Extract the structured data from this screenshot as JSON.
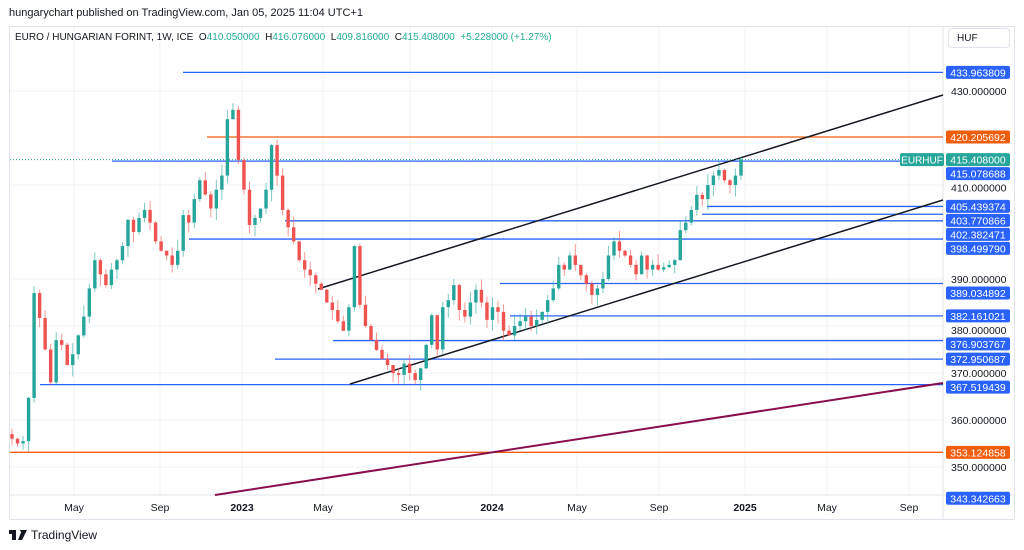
{
  "publish_line": "hungarychart published on TradingView.com, Jan 05, 2025 11:04 UTC+1",
  "legend": {
    "symbol": "EURO / HUNGARIAN FORINT, 1W, ICE",
    "o_label": "O",
    "o": "410.050000",
    "h_label": "H",
    "h": "416.076000",
    "l_label": "L",
    "l": "409.816000",
    "c_label": "C",
    "c": "415.408000",
    "change": "+5.228000 (+1.27%)"
  },
  "currency_button": "HUF",
  "symbol_tag": "EURHUF",
  "brand": "TradingView",
  "colors": {
    "up": "#26a69a",
    "down": "#ef5350",
    "level": "#2962ff",
    "orange": "#f05e0d",
    "trend": "#131722",
    "purple": "#880e4f"
  },
  "chart_data": {
    "type": "candlestick",
    "title": "EURO / HUNGARIAN FORINT, 1W, ICE",
    "ylim": [
      338,
      440
    ],
    "y_ticks": [
      "430.000000",
      "410.000000",
      "390.000000",
      "380.000000",
      "370.000000",
      "360.000000",
      "350.000000"
    ],
    "y_tick_values": [
      430,
      410,
      390,
      380,
      370,
      360,
      350
    ],
    "x_ticks": [
      "May",
      "Sep",
      "2023",
      "May",
      "Sep",
      "2024",
      "May",
      "Sep",
      "2025",
      "May",
      "Sep"
    ],
    "last_price": "415.408000",
    "weekly_closes": [
      356,
      355,
      355.5,
      364.7,
      387,
      381.7,
      375,
      368,
      377,
      376,
      371.7,
      374,
      378,
      382,
      388,
      394,
      391,
      388.7,
      392,
      394,
      397,
      402.6,
      400,
      403,
      404.7,
      402,
      398,
      396,
      395,
      393,
      396,
      403.6,
      402,
      407,
      411,
      408,
      405,
      409,
      412,
      424,
      426,
      415.3,
      409,
      401.5,
      403,
      405,
      409,
      418.5,
      412,
      404.7,
      401,
      398,
      394,
      392,
      390.8,
      389,
      387.7,
      385,
      383.4,
      381,
      379,
      384,
      397,
      384.5,
      380,
      377,
      374.9,
      373,
      371.7,
      370,
      369.6,
      372,
      370,
      368.5,
      371,
      376,
      382.3,
      375,
      384,
      385.5,
      388.7,
      383.4,
      382,
      385,
      387.7,
      385,
      381.3,
      384,
      383,
      379,
      378,
      380,
      381,
      382,
      380,
      381.3,
      383,
      385.5,
      388,
      393,
      392,
      395,
      393,
      390.8,
      389,
      386.6,
      388,
      390,
      395,
      398,
      396,
      395,
      393,
      391,
      395,
      392,
      393,
      392,
      392.5,
      393,
      394,
      400.4,
      402,
      404.7,
      407.9,
      407,
      410,
      412,
      413.2,
      411,
      410,
      412,
      415.408
    ],
    "levels": [
      {
        "label": "433.963809",
        "value": 433.963809,
        "color": "blue"
      },
      {
        "label": "420.205692",
        "value": 420.205692,
        "color": "orange"
      },
      {
        "label": "415.078688",
        "value": 415.078688,
        "color": "blue"
      },
      {
        "label": "405.439374",
        "value": 405.439374,
        "color": "blue"
      },
      {
        "label": "403.770866",
        "value": 403.770866,
        "color": "blue"
      },
      {
        "label": "402.382471",
        "value": 402.382471,
        "color": "blue"
      },
      {
        "label": "398.499790",
        "value": 398.49979,
        "color": "blue"
      },
      {
        "label": "389.034892",
        "value": 389.034892,
        "color": "blue"
      },
      {
        "label": "382.161021",
        "value": 382.161021,
        "color": "blue"
      },
      {
        "label": "376.903767",
        "value": 376.903767,
        "color": "blue"
      },
      {
        "label": "372.950687",
        "value": 372.950687,
        "color": "blue"
      },
      {
        "label": "367.519439",
        "value": 367.519439,
        "color": "blue"
      },
      {
        "label": "353.124858",
        "value": 353.124858,
        "color": "orange"
      },
      {
        "label": "343.342663",
        "value": 343.342663,
        "color": "blue"
      }
    ]
  }
}
